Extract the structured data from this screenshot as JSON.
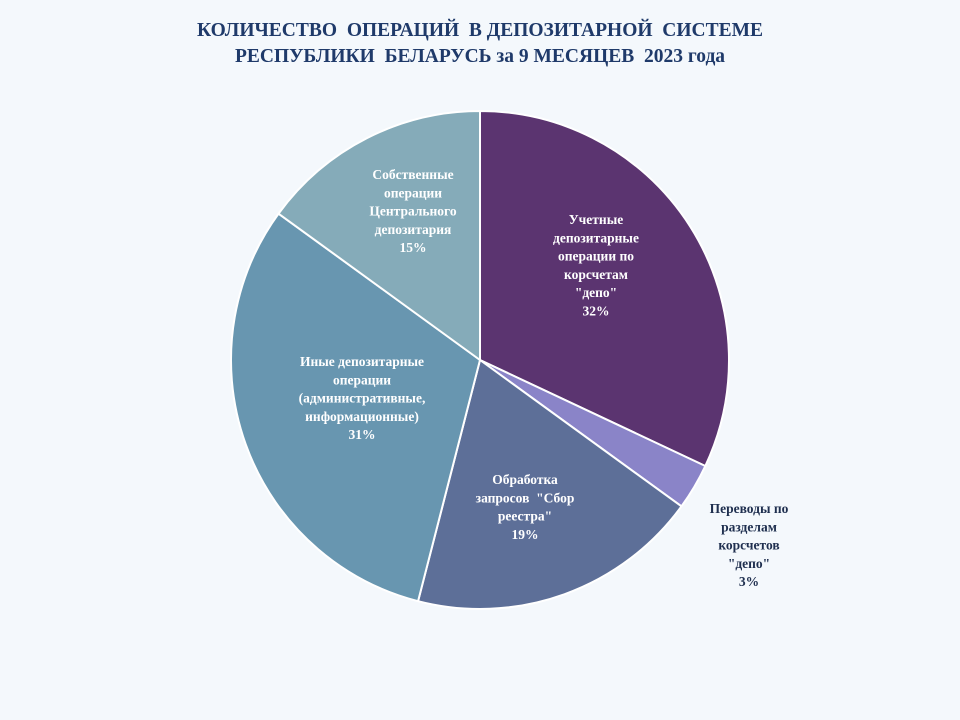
{
  "chart_data": {
    "type": "pie",
    "title_lines": [
      "КОЛИЧЕСТВО  ОПЕРАЦИЙ  В ДЕПОЗИТАРНОЙ  СИСТЕМЕ",
      "РЕСПУБЛИКИ  БЕЛАРУСЬ за 9 МЕСЯЦЕВ  2023 года"
    ],
    "legend": "none",
    "slices": [
      {
        "name_lines": [
          "Учетные",
          "депозитарные",
          "операции по",
          "корсчетам",
          "\"депо\""
        ],
        "percent_label": "32%",
        "value": 32,
        "color": "#5b3470",
        "label_color": "#ffffff"
      },
      {
        "name_lines": [
          "Переводы по",
          "разделам",
          "корсчетов",
          "\"депо\""
        ],
        "percent_label": "3%",
        "value": 3,
        "color": "#8a84c8",
        "label_color": "#1f2f4f"
      },
      {
        "name_lines": [
          "Обработка",
          "запросов  \"Сбор",
          "реестра\""
        ],
        "percent_label": "19%",
        "value": 19,
        "color": "#5d6f98",
        "label_color": "#ffffff"
      },
      {
        "name_lines": [
          "Иные депозитарные",
          "операции",
          "(административные,",
          "информационные)"
        ],
        "percent_label": "31%",
        "value": 31,
        "color": "#6896b0",
        "label_color": "#ffffff"
      },
      {
        "name_lines": [
          "Собственные",
          "операции",
          "Центрального",
          "депозитария"
        ],
        "percent_label": "15%",
        "value": 15,
        "color": "#85abb9",
        "label_color": "#ffffff"
      }
    ]
  }
}
